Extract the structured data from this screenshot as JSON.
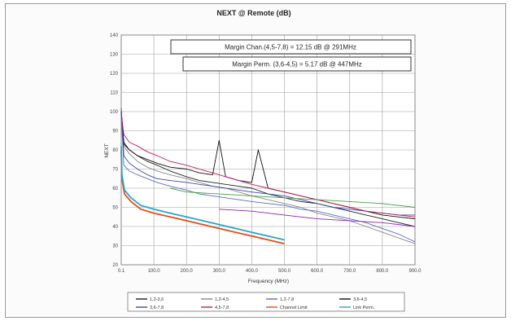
{
  "chart_data": {
    "type": "line",
    "title": "NEXT @ Remote (dB)",
    "xlabel": "Frequency (MHz)",
    "ylabel": "NEXT",
    "xlim": [
      0.1,
      900
    ],
    "ylim": [
      20,
      140
    ],
    "x_ticks": [
      "0.1",
      "100.0",
      "200.0",
      "300.0",
      "400.0",
      "500.0",
      "600.0",
      "700.0",
      "800.0",
      "900.0"
    ],
    "y_ticks": [
      "20",
      "30",
      "40",
      "50",
      "60",
      "70",
      "80",
      "90",
      "100",
      "110",
      "120",
      "130",
      "140"
    ],
    "grid": true,
    "legend_position": "bottom",
    "annotations": [
      "Margin Chan.(4,5-7,8) = 12.15 dB @ 291MHz",
      "Margin Perm. (3,6-4,5) = 5.17 dB @ 447MHz"
    ],
    "series": [
      {
        "name": "1,2-3,6",
        "color": "#222222",
        "points": [
          [
            0.1,
            100
          ],
          [
            8,
            84
          ],
          [
            25,
            80
          ],
          [
            50,
            77
          ],
          [
            80,
            74
          ],
          [
            110,
            72
          ],
          [
            150,
            69
          ],
          [
            200,
            66
          ],
          [
            240,
            64
          ],
          [
            280,
            63
          ],
          [
            320,
            62
          ],
          [
            360,
            61
          ],
          [
            400,
            60
          ],
          [
            450,
            57
          ],
          [
            500,
            55
          ],
          [
            550,
            53
          ],
          [
            600,
            52
          ],
          [
            650,
            50
          ],
          [
            700,
            48
          ],
          [
            750,
            46
          ],
          [
            800,
            44
          ],
          [
            850,
            42
          ],
          [
            900,
            40
          ]
        ]
      },
      {
        "name": "1,2-4,5",
        "color": "#888888",
        "points": [
          [
            0.1,
            96
          ],
          [
            8,
            82
          ],
          [
            25,
            78
          ],
          [
            50,
            74
          ],
          [
            80,
            71
          ],
          [
            110,
            69
          ],
          [
            150,
            67
          ],
          [
            200,
            65
          ],
          [
            240,
            63
          ],
          [
            280,
            61
          ],
          [
            320,
            60
          ],
          [
            360,
            58
          ],
          [
            400,
            56
          ],
          [
            450,
            54
          ],
          [
            500,
            52
          ],
          [
            550,
            50
          ],
          [
            600,
            47
          ],
          [
            650,
            45
          ],
          [
            700,
            43
          ],
          [
            750,
            40
          ],
          [
            800,
            37
          ],
          [
            850,
            34
          ],
          [
            900,
            31
          ]
        ]
      },
      {
        "name": "1,2-7,8",
        "color": "#5c6bc0",
        "points": [
          [
            0.1,
            98
          ],
          [
            8,
            72
          ],
          [
            25,
            69
          ],
          [
            50,
            67
          ],
          [
            80,
            65
          ],
          [
            110,
            63
          ],
          [
            150,
            61
          ],
          [
            200,
            59
          ],
          [
            240,
            57
          ],
          [
            280,
            56
          ],
          [
            320,
            55
          ],
          [
            360,
            54
          ],
          [
            400,
            53
          ],
          [
            450,
            52
          ],
          [
            500,
            51
          ],
          [
            550,
            49
          ],
          [
            600,
            48
          ],
          [
            650,
            46
          ],
          [
            700,
            44
          ],
          [
            750,
            42
          ],
          [
            800,
            39
          ],
          [
            850,
            36
          ],
          [
            900,
            32
          ]
        ]
      },
      {
        "name": "3,6-4,5",
        "color": "#111111",
        "points": [
          [
            0.1,
            101
          ],
          [
            8,
            83
          ],
          [
            25,
            80
          ],
          [
            50,
            77
          ],
          [
            80,
            75
          ],
          [
            110,
            73
          ],
          [
            150,
            71
          ],
          [
            200,
            70
          ],
          [
            240,
            68
          ],
          [
            280,
            67
          ],
          [
            300,
            85
          ],
          [
            320,
            66
          ],
          [
            360,
            64
          ],
          [
            400,
            63
          ],
          [
            420,
            80
          ],
          [
            450,
            60
          ],
          [
            500,
            58
          ],
          [
            550,
            56
          ],
          [
            600,
            54
          ],
          [
            650,
            52
          ],
          [
            700,
            50
          ],
          [
            750,
            48
          ],
          [
            800,
            46
          ],
          [
            850,
            45
          ],
          [
            900,
            44
          ]
        ]
      },
      {
        "name": "3,6-7,8",
        "color": "#3949ab",
        "points": [
          [
            0.1,
            102
          ],
          [
            8,
            77
          ],
          [
            25,
            73
          ],
          [
            50,
            70
          ],
          [
            80,
            67
          ],
          [
            110,
            65
          ],
          [
            150,
            64
          ],
          [
            200,
            63
          ],
          [
            240,
            62
          ],
          [
            280,
            61
          ],
          [
            320,
            60
          ],
          [
            360,
            59
          ],
          [
            400,
            58
          ],
          [
            450,
            57
          ],
          [
            500,
            56
          ],
          [
            550,
            54
          ],
          [
            600,
            52
          ],
          [
            650,
            50
          ],
          [
            700,
            49
          ],
          [
            750,
            48
          ],
          [
            800,
            47
          ],
          [
            850,
            46
          ],
          [
            900,
            46
          ]
        ]
      },
      {
        "name": "4,5-7,8",
        "color": "#c2185b",
        "points": [
          [
            0.1,
            99
          ],
          [
            8,
            88
          ],
          [
            25,
            84
          ],
          [
            50,
            82
          ],
          [
            80,
            79
          ],
          [
            110,
            77
          ],
          [
            150,
            74
          ],
          [
            200,
            72
          ],
          [
            240,
            70
          ],
          [
            280,
            68
          ],
          [
            320,
            66
          ],
          [
            360,
            64
          ],
          [
            400,
            62
          ],
          [
            450,
            60
          ],
          [
            500,
            58
          ],
          [
            550,
            56
          ],
          [
            600,
            54
          ],
          [
            650,
            52
          ],
          [
            700,
            50
          ],
          [
            750,
            48
          ],
          [
            800,
            47
          ],
          [
            850,
            46
          ],
          [
            900,
            45
          ]
        ]
      },
      {
        "name": "Channel Limit",
        "color": "#e64a19",
        "points": [
          [
            0.1,
            80
          ],
          [
            2,
            65
          ],
          [
            10,
            57
          ],
          [
            30,
            53
          ],
          [
            60,
            49
          ],
          [
            100,
            47
          ],
          [
            150,
            45
          ],
          [
            200,
            43
          ],
          [
            250,
            41
          ],
          [
            300,
            39
          ],
          [
            350,
            37
          ],
          [
            400,
            35
          ],
          [
            450,
            33
          ],
          [
            500,
            31
          ]
        ]
      },
      {
        "name": "Link Perm.",
        "color": "#26a6c9",
        "points": [
          [
            0.1,
            82
          ],
          [
            2,
            67
          ],
          [
            10,
            59
          ],
          [
            30,
            55
          ],
          [
            60,
            51
          ],
          [
            100,
            49
          ],
          [
            150,
            47
          ],
          [
            200,
            45
          ],
          [
            250,
            43
          ],
          [
            300,
            41
          ],
          [
            350,
            39
          ],
          [
            400,
            37
          ],
          [
            450,
            35
          ],
          [
            500,
            33
          ]
        ]
      },
      {
        "name": "",
        "color": "#43a047",
        "points": [
          [
            150,
            60
          ],
          [
            200,
            58
          ],
          [
            300,
            57
          ],
          [
            400,
            56
          ],
          [
            500,
            55
          ],
          [
            600,
            54
          ],
          [
            700,
            53
          ],
          [
            800,
            52
          ],
          [
            900,
            50
          ]
        ]
      },
      {
        "name": "",
        "color": "#8e24aa",
        "points": [
          [
            300,
            49
          ],
          [
            400,
            48
          ],
          [
            500,
            46
          ],
          [
            600,
            44
          ],
          [
            700,
            43
          ],
          [
            800,
            42
          ],
          [
            900,
            40
          ]
        ]
      }
    ]
  }
}
